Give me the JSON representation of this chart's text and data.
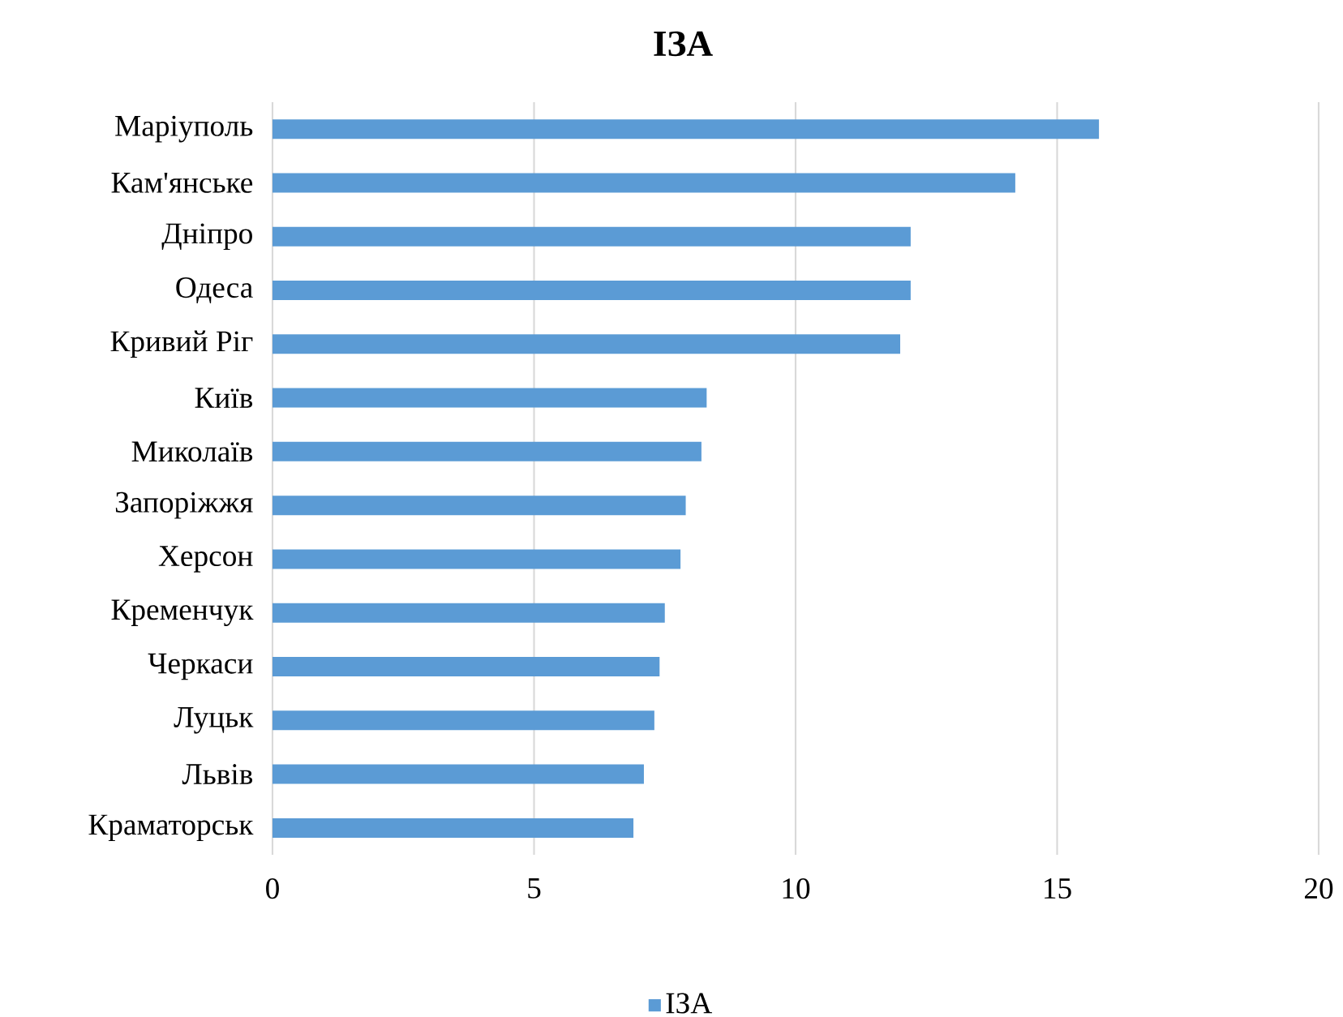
{
  "chart_data": {
    "type": "bar",
    "orientation": "horizontal",
    "title": "ІЗА",
    "categories": [
      "Маріуполь",
      "Кам'янське",
      "Дніпро",
      "Одеса",
      "Кривий Ріг",
      "Київ",
      "Миколаїв",
      "Запоріжжя",
      "Херсон",
      "Кременчук",
      "Черкаси",
      "Луцьк",
      "Львів",
      "Краматорськ"
    ],
    "series": [
      {
        "name": "ІЗА",
        "color": "#5b9bd5",
        "values": [
          15.8,
          14.2,
          12.2,
          12.2,
          12.0,
          8.3,
          8.2,
          7.9,
          7.8,
          7.5,
          7.4,
          7.3,
          7.1,
          6.9
        ]
      }
    ],
    "xlim": [
      0,
      20
    ],
    "xticks": [
      0,
      5,
      10,
      15,
      20
    ],
    "grid": "x",
    "legend": "bottom"
  }
}
